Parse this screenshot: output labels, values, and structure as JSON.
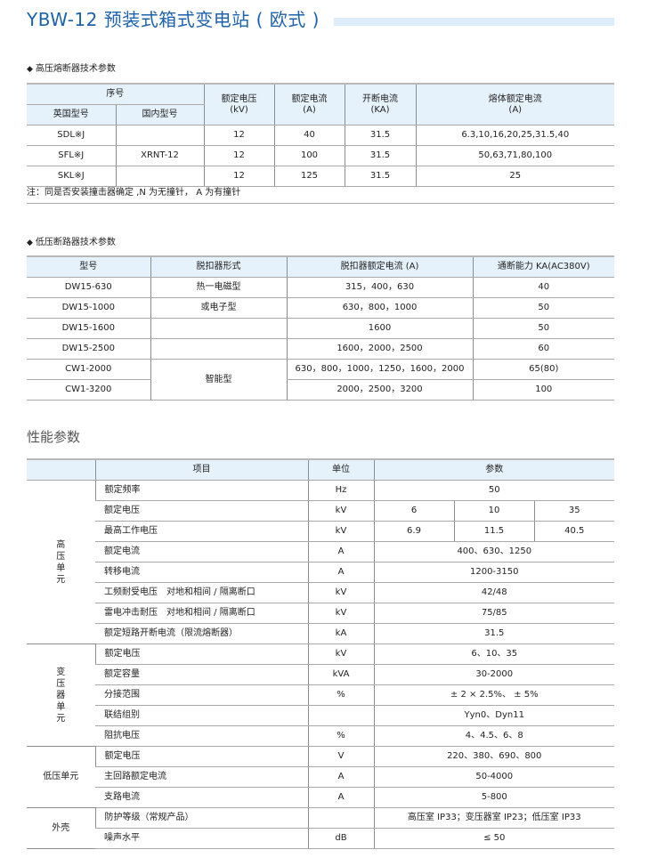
{
  "title": "YBW-12 预装式箱式变电站 ( 欧式 )",
  "colors": {
    "title": "#1d62ad",
    "header_bg": "#e6f2fb",
    "title_bar": "#dcecf8"
  },
  "fuse": {
    "heading": "高压熔断器技术参数",
    "headers": {
      "serial": "序号",
      "uk_model": "英国型号",
      "cn_model": "国内型号",
      "voltage": "额定电压",
      "voltage_unit": "(kV)",
      "current": "额定电流",
      "current_unit": "(A)",
      "breaking": "开断电流",
      "breaking_unit": "(KA)",
      "fuse_current": "熔体额定电流",
      "fuse_current_unit": "(A)"
    },
    "rows": [
      [
        "SDL※J",
        "",
        "12",
        "40",
        "31.5",
        "6.3,10,16,20,25,31.5,40"
      ],
      [
        "SFL※J",
        "XRNT-12",
        "12",
        "100",
        "31.5",
        "50,63,71,80,100"
      ],
      [
        "SKL※J",
        "",
        "12",
        "125",
        "31.5",
        "25"
      ]
    ],
    "note": "注：同是否安装撞击器确定 ,N 为无撞针， A 为有撞针"
  },
  "breaker": {
    "heading": "低压断路器技术参数",
    "headers": [
      "型号",
      "脱扣器形式",
      "脱扣器额定电流 (A)",
      "通断能力 KA(AC380V)"
    ],
    "rows": [
      [
        "DW15-630",
        "热一电磁型",
        "315，400，630",
        "40"
      ],
      [
        "DW15-1000",
        "或电子型",
        "630，800，1000",
        "50"
      ],
      [
        "DW15-1600",
        "",
        "1600",
        "50"
      ],
      [
        "DW15-2500",
        "",
        "1600，2000，2500",
        "60"
      ],
      [
        "CW1-2000",
        "智能型",
        "630，800，1000，1250，1600，2000",
        "65(80)"
      ],
      [
        "CW1-3200",
        null,
        "2000，2500，3200",
        "100"
      ]
    ]
  },
  "performance": {
    "heading": "性能参数",
    "headers": [
      "",
      "项目",
      "单位",
      "参数"
    ],
    "groups": [
      {
        "name": "高压单元",
        "rows": [
          [
            "额定频率",
            "Hz",
            "50"
          ],
          [
            "额定电压",
            "kV",
            [
              "6",
              "10",
              "35"
            ]
          ],
          [
            "最高工作电压",
            "kV",
            [
              "6.9",
              "11.5",
              "40.5"
            ]
          ],
          [
            "额定电流",
            "A",
            "400、630、1250"
          ],
          [
            "转移电流",
            "A",
            "1200-3150"
          ],
          [
            "工频耐受电压　对地和相间 / 隔离断口",
            "kV",
            "42/48"
          ],
          [
            "雷电冲击耐压　对地和相间 / 隔离断口",
            "kV",
            "75/85"
          ],
          [
            "额定短路开断电流（限流熔断器）",
            "kA",
            "31.5"
          ]
        ]
      },
      {
        "name": "变压器单元",
        "rows": [
          [
            "额定电压",
            "kV",
            "6、10、35"
          ],
          [
            "额定容量",
            "kVA",
            "30-2000"
          ],
          [
            "分接范围",
            "%",
            "± 2 × 2.5%、 ± 5%"
          ],
          [
            "联结组别",
            "",
            "Yyn0、Dyn11"
          ],
          [
            "阻抗电压",
            "%",
            "4、4.5、6、8"
          ]
        ]
      },
      {
        "name": "低压单元",
        "horizontal": true,
        "rows": [
          [
            "额定电压",
            "V",
            "220、380、690、800"
          ],
          [
            "主回路额定电流",
            "A",
            "50-4000"
          ],
          [
            "支路电流",
            "A",
            "5-800"
          ]
        ]
      },
      {
        "name": "外壳",
        "horizontal": true,
        "rows": [
          [
            "防护等级（常规产品）",
            "",
            "高压室 IP33；变压器室 IP23；低压室 IP33"
          ],
          [
            "噪声水平",
            "dB",
            "≤ 50"
          ]
        ]
      }
    ]
  }
}
